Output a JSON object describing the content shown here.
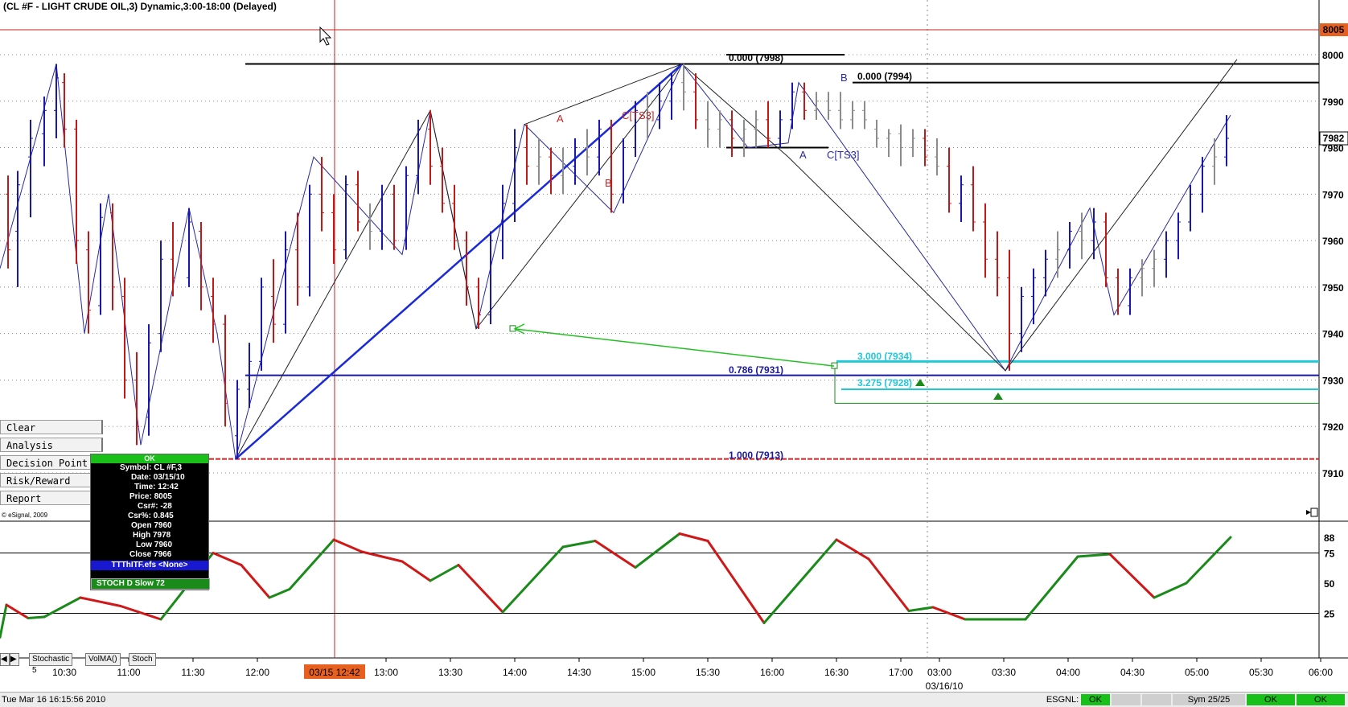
{
  "window_title": "(CL #F - LIGHT CRUDE OIL,3) Dynamic,3:00-18:00 (Delayed)",
  "price_axis": {
    "labels": [
      "8000",
      "7990",
      "7980",
      "7970",
      "7960",
      "7950",
      "7940",
      "7930",
      "7920",
      "7910"
    ],
    "current_badge": "8005",
    "last_badge": "7982",
    "badge_color": "#e86020"
  },
  "osc_axis": {
    "labels": [
      "88",
      "75",
      "50",
      "25"
    ]
  },
  "time_axis": {
    "labels": [
      "10:30",
      "11:00",
      "11:30",
      "12:00",
      "13:00",
      "13:30",
      "14:00",
      "14:30",
      "15:00",
      "15:30",
      "16:00",
      "16:30",
      "17:00",
      "03:00",
      "03:30",
      "04:00",
      "04:30",
      "05:00",
      "05:30",
      "06:00"
    ],
    "cursor_time": "03/15 12:42",
    "date_label": "03/16/10"
  },
  "annotations": {
    "fib_0000_a": "0.000 (7998)",
    "fib_0000_b": "0.000 (7994)",
    "fib_0786": "0.786 (7931)",
    "fib_1000": "1.000 (7913)",
    "ext_3000": "3.000 (7934)",
    "ext_3275": "3.275 (7928)",
    "wave_a1": "A",
    "wave_b1": "B",
    "wave_c1": "C[TS3]",
    "wave_a2": "A",
    "wave_b2": "B",
    "wave_c2": "C[TS3]"
  },
  "side_menu": {
    "items": [
      "Clear",
      "Analysis",
      "Decision Point",
      "Risk/Reward",
      "Report"
    ],
    "copyright": "© eSignal, 2009"
  },
  "cursor_window": {
    "status": "OK",
    "rows": [
      "Symbol: CL #F,3",
      "Date: 03/15/10",
      "Time: 12:42",
      "Price: 8005",
      "Csr#: -28",
      "Csr%: 0.845",
      "Open 7960",
      "High 7978",
      "Low 7960",
      "Close 7966"
    ],
    "study": "TTThITF.efs <None>",
    "stoch": "STOCH D Slow 72"
  },
  "tabs": [
    "Stochastic 5",
    "VolMA()",
    "Stoch"
  ],
  "status_bar": {
    "datetime": "Tue Mar 16 16:15:56 2010",
    "esgnl_label": "ESGNL:",
    "ok1": "OK",
    "sym": "Sym 25/25",
    "ok2": "OK",
    "ok3": "OK"
  },
  "chart_data": {
    "type": "bar",
    "instrument": "CL #F",
    "price_axis_range": [
      7903,
      8012
    ],
    "osc_range": [
      0,
      100
    ],
    "osc_levels": [
      25,
      75
    ],
    "fib_levels": [
      {
        "label": "0.000",
        "value": 7998
      },
      {
        "label": "0.000",
        "value": 7994
      },
      {
        "label": "0.786",
        "value": 7931
      },
      {
        "label": "1.000",
        "value": 7913
      }
    ],
    "extension_levels": [
      {
        "label": "3.000",
        "value": 7934
      },
      {
        "label": "3.275",
        "value": 7928
      }
    ],
    "zigzag": [
      [
        0,
        7954
      ],
      [
        70,
        7998
      ],
      [
        105,
        7940
      ],
      [
        135,
        7970
      ],
      [
        175,
        7916
      ],
      [
        235,
        7967
      ],
      [
        270,
        7940
      ],
      [
        293,
        7913
      ],
      [
        390,
        7978
      ],
      [
        500,
        7957
      ],
      [
        535,
        7988
      ],
      [
        592,
        7941
      ],
      [
        652,
        7985
      ],
      [
        763,
        7966
      ],
      [
        848,
        7998
      ],
      [
        930,
        7980
      ],
      [
        980,
        7981
      ],
      [
        993,
        7994
      ],
      [
        1250,
        7932
      ],
      [
        1355,
        7967
      ],
      [
        1385,
        7944
      ],
      [
        1530,
        7987
      ]
    ],
    "zigzag_thin": [
      [
        293,
        7913
      ],
      [
        535,
        7988
      ],
      [
        592,
        7941
      ],
      [
        848,
        7998
      ],
      [
        980,
        7978
      ],
      [
        1250,
        7932
      ],
      [
        1538,
        7999
      ]
    ],
    "bold_line": [
      [
        293,
        7913
      ],
      [
        848,
        7998
      ]
    ],
    "stoch_d": [
      [
        0,
        5
      ],
      [
        8,
        32
      ],
      [
        35,
        21
      ],
      [
        55,
        22
      ],
      [
        100,
        38
      ],
      [
        150,
        31
      ],
      [
        200,
        20
      ],
      [
        265,
        75
      ],
      [
        300,
        65
      ],
      [
        335,
        38
      ],
      [
        360,
        45
      ],
      [
        415,
        86
      ],
      [
        450,
        76
      ],
      [
        500,
        68
      ],
      [
        535,
        52
      ],
      [
        570,
        65
      ],
      [
        625,
        26
      ],
      [
        700,
        80
      ],
      [
        740,
        85
      ],
      [
        790,
        63
      ],
      [
        845,
        91
      ],
      [
        880,
        85
      ],
      [
        950,
        17
      ],
      [
        1040,
        86
      ],
      [
        1080,
        70
      ],
      [
        1130,
        27
      ],
      [
        1160,
        30
      ],
      [
        1200,
        20
      ],
      [
        1275,
        20
      ],
      [
        1340,
        72
      ],
      [
        1380,
        74
      ],
      [
        1435,
        38
      ],
      [
        1475,
        50
      ],
      [
        1530,
        88
      ]
    ],
    "bars": [
      {
        "x": 10,
        "o": 7970,
        "h": 7974,
        "l": 7954,
        "c": 7958
      },
      {
        "x": 22,
        "o": 7962,
        "h": 7975,
        "l": 7950,
        "c": 7972
      },
      {
        "x": 38,
        "o": 7978,
        "h": 7986,
        "l": 7965,
        "c": 7982
      },
      {
        "x": 55,
        "o": 7983,
        "h": 7991,
        "l": 7976,
        "c": 7988
      },
      {
        "x": 70,
        "o": 7988,
        "h": 7998,
        "l": 7982,
        "c": 7995
      },
      {
        "x": 80,
        "o": 7994,
        "h": 7996,
        "l": 7980,
        "c": 7984
      },
      {
        "x": 95,
        "o": 7984,
        "h": 7986,
        "l": 7955,
        "c": 7960
      },
      {
        "x": 110,
        "o": 7958,
        "h": 7962,
        "l": 7940,
        "c": 7945
      },
      {
        "x": 125,
        "o": 7946,
        "h": 7968,
        "l": 7944,
        "c": 7965
      },
      {
        "x": 140,
        "o": 7966,
        "h": 7968,
        "l": 7945,
        "c": 7950
      },
      {
        "x": 155,
        "o": 7948,
        "h": 7952,
        "l": 7926,
        "c": 7930
      },
      {
        "x": 170,
        "o": 7930,
        "h": 7936,
        "l": 7916,
        "c": 7920
      },
      {
        "x": 185,
        "o": 7922,
        "h": 7942,
        "l": 7918,
        "c": 7938
      },
      {
        "x": 200,
        "o": 7940,
        "h": 7960,
        "l": 7936,
        "c": 7956
      },
      {
        "x": 215,
        "o": 7956,
        "h": 7964,
        "l": 7948,
        "c": 7952
      },
      {
        "x": 235,
        "o": 7952,
        "h": 7967,
        "l": 7950,
        "c": 7964
      },
      {
        "x": 250,
        "o": 7962,
        "h": 7964,
        "l": 7945,
        "c": 7950
      },
      {
        "x": 265,
        "o": 7948,
        "h": 7952,
        "l": 7938,
        "c": 7942
      },
      {
        "x": 280,
        "o": 7942,
        "h": 7944,
        "l": 7920,
        "c": 7925
      },
      {
        "x": 295,
        "o": 7918,
        "h": 7930,
        "l": 7913,
        "c": 7928
      },
      {
        "x": 310,
        "o": 7928,
        "h": 7938,
        "l": 7924,
        "c": 7934
      },
      {
        "x": 325,
        "o": 7934,
        "h": 7952,
        "l": 7932,
        "c": 7950
      },
      {
        "x": 340,
        "o": 7948,
        "h": 7956,
        "l": 7938,
        "c": 7942
      },
      {
        "x": 355,
        "o": 7942,
        "h": 7962,
        "l": 7940,
        "c": 7958
      },
      {
        "x": 370,
        "o": 7958,
        "h": 7966,
        "l": 7946,
        "c": 7950
      },
      {
        "x": 385,
        "o": 7950,
        "h": 7972,
        "l": 7948,
        "c": 7970
      },
      {
        "x": 400,
        "o": 7970,
        "h": 7978,
        "l": 7962,
        "c": 7966
      },
      {
        "x": 415,
        "o": 7966,
        "h": 7970,
        "l": 7955,
        "c": 7958
      },
      {
        "x": 430,
        "o": 7958,
        "h": 7974,
        "l": 7956,
        "c": 7972
      },
      {
        "x": 445,
        "o": 7972,
        "h": 7975,
        "l": 7962,
        "c": 7964
      },
      {
        "x": 460,
        "o": 7964,
        "h": 7968,
        "l": 7958,
        "c": 7962
      },
      {
        "x": 475,
        "o": 7962,
        "h": 7972,
        "l": 7958,
        "c": 7970
      },
      {
        "x": 490,
        "o": 7970,
        "h": 7972,
        "l": 7958,
        "c": 7960
      },
      {
        "x": 505,
        "o": 7960,
        "h": 7976,
        "l": 7958,
        "c": 7974
      },
      {
        "x": 520,
        "o": 7974,
        "h": 7986,
        "l": 7970,
        "c": 7984
      },
      {
        "x": 535,
        "o": 7984,
        "h": 7988,
        "l": 7972,
        "c": 7976
      },
      {
        "x": 550,
        "o": 7976,
        "h": 7980,
        "l": 7966,
        "c": 7968
      },
      {
        "x": 565,
        "o": 7968,
        "h": 7972,
        "l": 7958,
        "c": 7960
      },
      {
        "x": 580,
        "o": 7960,
        "h": 7962,
        "l": 7946,
        "c": 7950
      },
      {
        "x": 595,
        "o": 7950,
        "h": 7952,
        "l": 7941,
        "c": 7944
      },
      {
        "x": 610,
        "o": 7944,
        "h": 7962,
        "l": 7942,
        "c": 7960
      },
      {
        "x": 625,
        "o": 7960,
        "h": 7972,
        "l": 7956,
        "c": 7968
      },
      {
        "x": 640,
        "o": 7968,
        "h": 7984,
        "l": 7964,
        "c": 7980
      },
      {
        "x": 655,
        "o": 7980,
        "h": 7985,
        "l": 7972,
        "c": 7976
      },
      {
        "x": 670,
        "o": 7976,
        "h": 7982,
        "l": 7972,
        "c": 7978
      },
      {
        "x": 685,
        "o": 7978,
        "h": 7980,
        "l": 7970,
        "c": 7974
      },
      {
        "x": 700,
        "o": 7974,
        "h": 7980,
        "l": 7970,
        "c": 7976
      },
      {
        "x": 715,
        "o": 7976,
        "h": 7982,
        "l": 7972,
        "c": 7980
      },
      {
        "x": 730,
        "o": 7980,
        "h": 7984,
        "l": 7974,
        "c": 7978
      },
      {
        "x": 745,
        "o": 7978,
        "h": 7986,
        "l": 7974,
        "c": 7984
      },
      {
        "x": 760,
        "o": 7984,
        "h": 7986,
        "l": 7966,
        "c": 7970
      },
      {
        "x": 775,
        "o": 7970,
        "h": 7982,
        "l": 7968,
        "c": 7980
      },
      {
        "x": 790,
        "o": 7980,
        "h": 7990,
        "l": 7978,
        "c": 7988
      },
      {
        "x": 805,
        "o": 7988,
        "h": 7992,
        "l": 7982,
        "c": 7986
      },
      {
        "x": 820,
        "o": 7986,
        "h": 7994,
        "l": 7984,
        "c": 7990
      },
      {
        "x": 835,
        "o": 7990,
        "h": 7996,
        "l": 7986,
        "c": 7994
      },
      {
        "x": 850,
        "o": 7994,
        "h": 7998,
        "l": 7988,
        "c": 7992
      },
      {
        "x": 865,
        "o": 7992,
        "h": 7996,
        "l": 7984,
        "c": 7986
      },
      {
        "x": 880,
        "o": 7986,
        "h": 7990,
        "l": 7980,
        "c": 7984
      },
      {
        "x": 895,
        "o": 7984,
        "h": 7988,
        "l": 7980,
        "c": 7986
      },
      {
        "x": 910,
        "o": 7986,
        "h": 7988,
        "l": 7978,
        "c": 7982
      },
      {
        "x": 925,
        "o": 7982,
        "h": 7986,
        "l": 7978,
        "c": 7984
      },
      {
        "x": 940,
        "o": 7984,
        "h": 7988,
        "l": 7980,
        "c": 7986
      },
      {
        "x": 955,
        "o": 7986,
        "h": 7990,
        "l": 7980,
        "c": 7982
      },
      {
        "x": 970,
        "o": 7982,
        "h": 7988,
        "l": 7980,
        "c": 7986
      },
      {
        "x": 985,
        "o": 7986,
        "h": 7994,
        "l": 7984,
        "c": 7992
      },
      {
        "x": 1000,
        "o": 7992,
        "h": 7994,
        "l": 7986,
        "c": 7988
      },
      {
        "x": 1015,
        "o": 7988,
        "h": 7992,
        "l": 7986,
        "c": 7990
      },
      {
        "x": 1030,
        "o": 7990,
        "h": 7992,
        "l": 7986,
        "c": 7988
      },
      {
        "x": 1045,
        "o": 7988,
        "h": 7992,
        "l": 7984,
        "c": 7986
      },
      {
        "x": 1060,
        "o": 7986,
        "h": 7990,
        "l": 7984,
        "c": 7988
      },
      {
        "x": 1075,
        "o": 7988,
        "h": 7990,
        "l": 7984,
        "c": 7986
      },
      {
        "x": 1090,
        "o": 7984,
        "h": 7986,
        "l": 7980,
        "c": 7982
      },
      {
        "x": 1105,
        "o": 7982,
        "h": 7984,
        "l": 7978,
        "c": 7983
      },
      {
        "x": 1120,
        "o": 7983,
        "h": 7985,
        "l": 7976,
        "c": 7980
      },
      {
        "x": 1135,
        "o": 7980,
        "h": 7984,
        "l": 7978,
        "c": 7982
      },
      {
        "x": 1150,
        "o": 7982,
        "h": 7984,
        "l": 7976,
        "c": 7978
      },
      {
        "x": 1165,
        "o": 7978,
        "h": 7982,
        "l": 7974,
        "c": 7976
      },
      {
        "x": 1180,
        "o": 7976,
        "h": 7980,
        "l": 7966,
        "c": 7968
      },
      {
        "x": 1195,
        "o": 7968,
        "h": 7974,
        "l": 7964,
        "c": 7972
      },
      {
        "x": 1210,
        "o": 7972,
        "h": 7976,
        "l": 7962,
        "c": 7964
      },
      {
        "x": 1225,
        "o": 7964,
        "h": 7968,
        "l": 7952,
        "c": 7956
      },
      {
        "x": 1240,
        "o": 7956,
        "h": 7962,
        "l": 7948,
        "c": 7952
      },
      {
        "x": 1255,
        "o": 7952,
        "h": 7958,
        "l": 7932,
        "c": 7940
      },
      {
        "x": 1270,
        "o": 7940,
        "h": 7950,
        "l": 7936,
        "c": 7948
      },
      {
        "x": 1285,
        "o": 7948,
        "h": 7954,
        "l": 7942,
        "c": 7952
      },
      {
        "x": 1300,
        "o": 7952,
        "h": 7958,
        "l": 7948,
        "c": 7956
      },
      {
        "x": 1315,
        "o": 7956,
        "h": 7962,
        "l": 7952,
        "c": 7958
      },
      {
        "x": 1330,
        "o": 7958,
        "h": 7964,
        "l": 7954,
        "c": 7962
      },
      {
        "x": 1345,
        "o": 7962,
        "h": 7966,
        "l": 7956,
        "c": 7960
      },
      {
        "x": 1360,
        "o": 7960,
        "h": 7967,
        "l": 7956,
        "c": 7964
      },
      {
        "x": 1375,
        "o": 7964,
        "h": 7966,
        "l": 7950,
        "c": 7952
      },
      {
        "x": 1390,
        "o": 7952,
        "h": 7954,
        "l": 7944,
        "c": 7946
      },
      {
        "x": 1405,
        "o": 7946,
        "h": 7954,
        "l": 7944,
        "c": 7952
      },
      {
        "x": 1420,
        "o": 7952,
        "h": 7956,
        "l": 7948,
        "c": 7954
      },
      {
        "x": 1435,
        "o": 7954,
        "h": 7958,
        "l": 7950,
        "c": 7956
      },
      {
        "x": 1450,
        "o": 7956,
        "h": 7962,
        "l": 7952,
        "c": 7960
      },
      {
        "x": 1465,
        "o": 7960,
        "h": 7966,
        "l": 7956,
        "c": 7964
      },
      {
        "x": 1480,
        "o": 7964,
        "h": 7972,
        "l": 7962,
        "c": 7970
      },
      {
        "x": 1495,
        "o": 7970,
        "h": 7978,
        "l": 7966,
        "c": 7976
      },
      {
        "x": 1510,
        "o": 7976,
        "h": 7982,
        "l": 7972,
        "c": 7978
      },
      {
        "x": 1525,
        "o": 7978,
        "h": 7987,
        "l": 7976,
        "c": 7982
      }
    ]
  }
}
